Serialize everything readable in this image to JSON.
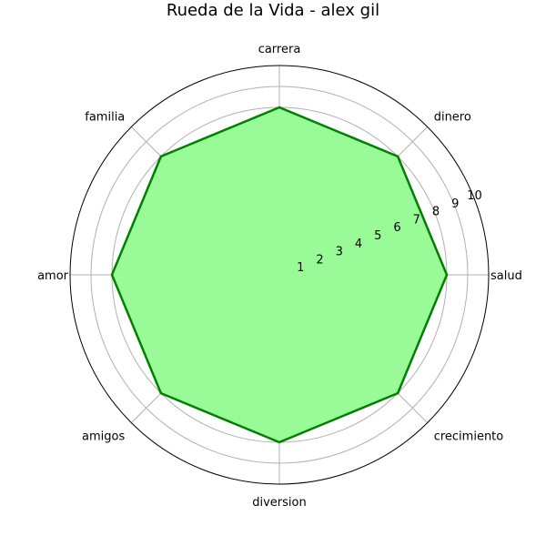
{
  "chart_data": {
    "type": "radar",
    "title": "Rueda de la Vida - alex gil",
    "categories": [
      "salud",
      "dinero",
      "carrera",
      "familia",
      "amor",
      "amigos",
      "diversion",
      "crecimiento"
    ],
    "values": [
      8,
      8,
      8,
      8,
      8,
      8,
      8,
      8
    ],
    "rticks": [
      1,
      2,
      3,
      4,
      5,
      6,
      7,
      8,
      9,
      10
    ],
    "rlim": [
      0,
      10
    ],
    "grid": true,
    "colors": {
      "fill": "#98fb98",
      "line": "#008000",
      "grid": "#b0b0b0",
      "frame": "#000000"
    }
  }
}
